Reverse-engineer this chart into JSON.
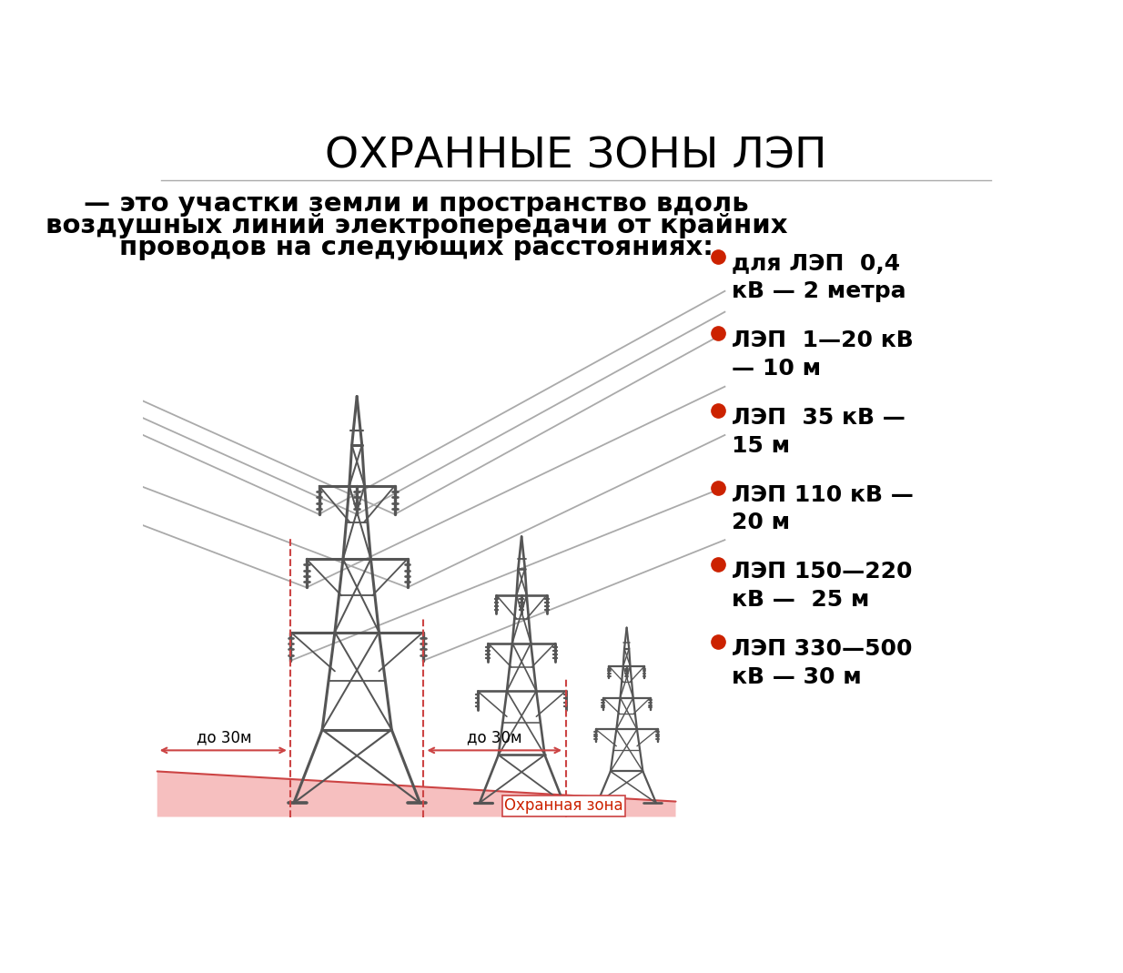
{
  "title": "ОХРАННЫЕ ЗОНЫ ЛЭП",
  "subtitle_line1": "— это участки земли и пространство вдоль",
  "subtitle_line2": "воздушных линий электропередачи от крайних",
  "subtitle_line3": "проводов на следующих расстояниях:",
  "legend_items": [
    {
      "text": "для ЛЭП  0,4\nкВ — 2 метра",
      "color": "#cc2200"
    },
    {
      "text": "ЛЭП  1—20 кВ\n— 10 м",
      "color": "#cc2200"
    },
    {
      "text": "ЛЭП  35 кВ —\n15 м",
      "color": "#cc2200"
    },
    {
      "text": "ЛЭП 110 кВ —\n20 м",
      "color": "#cc2200"
    },
    {
      "text": "ЛЭП 150—220\nкВ —  25 м",
      "color": "#cc2200"
    },
    {
      "text": "ЛЭП 330—500\nкВ — 30 м",
      "color": "#cc2200"
    }
  ],
  "bg_color": "#ffffff",
  "text_color": "#000000",
  "tower_color": "#555555",
  "zone_color": "#f5b8b8",
  "zone_border_color": "#cc4444",
  "dashed_line_color": "#cc4444",
  "arrow_color": "#cc4444",
  "wire_color": "#aaaaaa",
  "label_30m_left": "до 30м",
  "label_30m_right": "до 30м",
  "label_zone": "Охранная зона"
}
